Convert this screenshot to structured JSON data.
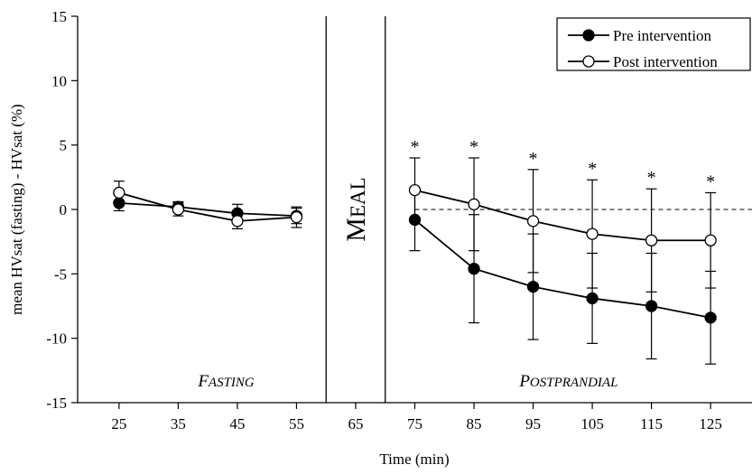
{
  "chart_data": {
    "type": "line",
    "xlabel": "Time (min)",
    "ylabel": "mean HVsat (fasting) - HVsat (%)",
    "xlim": [
      18,
      132
    ],
    "ylim": [
      -15,
      15
    ],
    "x_ticks": [
      25,
      35,
      45,
      55,
      65,
      75,
      85,
      95,
      105,
      115,
      125
    ],
    "y_ticks": [
      15,
      10,
      5,
      0,
      -5,
      -10,
      -15
    ],
    "x_tick_labels": [
      "25",
      "35",
      "45",
      "55",
      "65",
      "75",
      "85",
      "95",
      "105",
      "115",
      "125"
    ],
    "y_tick_labels": [
      "15",
      "10",
      "5",
      "0",
      "-5",
      "-10",
      "-15"
    ],
    "grid": false,
    "legend_position": "top-right",
    "reference_line": {
      "y": 0,
      "style": "dashed",
      "x_from": 75,
      "x_to": 132
    },
    "region_dividers_x": [
      60,
      70
    ],
    "region_labels": {
      "fasting": {
        "first": "F",
        "rest": "ASTING"
      },
      "meal": {
        "first": "M",
        "rest": "EAL"
      },
      "postprandial": {
        "first": "P",
        "rest": "OSTPRANDIAL"
      }
    },
    "series": [
      {
        "name": "Pre intervention",
        "marker": "filled-circle",
        "color": "#000000",
        "segments": [
          {
            "x": [
              25,
              35,
              45,
              55
            ],
            "y": [
              0.5,
              0.2,
              -0.3,
              -0.5
            ],
            "error": [
              0.6,
              0.4,
              0.7,
              0.6
            ]
          },
          {
            "x": [
              75,
              85,
              95,
              105,
              115,
              125
            ],
            "y": [
              -0.8,
              -4.6,
              -6.0,
              -6.9,
              -7.5,
              -8.4
            ],
            "error": [
              2.4,
              4.2,
              4.1,
              3.5,
              4.1,
              3.6
            ]
          }
        ]
      },
      {
        "name": "Post intervention",
        "marker": "open-circle",
        "color": "#000000",
        "segments": [
          {
            "x": [
              25,
              35,
              45,
              55
            ],
            "y": [
              1.3,
              0.0,
              -0.9,
              -0.6
            ],
            "error": [
              0.9,
              0.5,
              0.6,
              0.8
            ]
          },
          {
            "x": [
              75,
              85,
              95,
              105,
              115,
              125
            ],
            "y": [
              1.5,
              0.4,
              -0.9,
              -1.9,
              -2.4,
              -2.4
            ],
            "error": [
              2.5,
              3.6,
              4.0,
              4.2,
              4.0,
              3.7
            ]
          }
        ]
      }
    ],
    "annotations": [
      {
        "text": "*",
        "x": 75,
        "y": 4.0
      },
      {
        "text": "*",
        "x": 85,
        "y": 4.0
      },
      {
        "text": "*",
        "x": 95,
        "y": 3.1
      },
      {
        "text": "*",
        "x": 105,
        "y": 2.3
      },
      {
        "text": "*",
        "x": 115,
        "y": 1.6
      },
      {
        "text": "*",
        "x": 125,
        "y": 1.3
      }
    ]
  }
}
